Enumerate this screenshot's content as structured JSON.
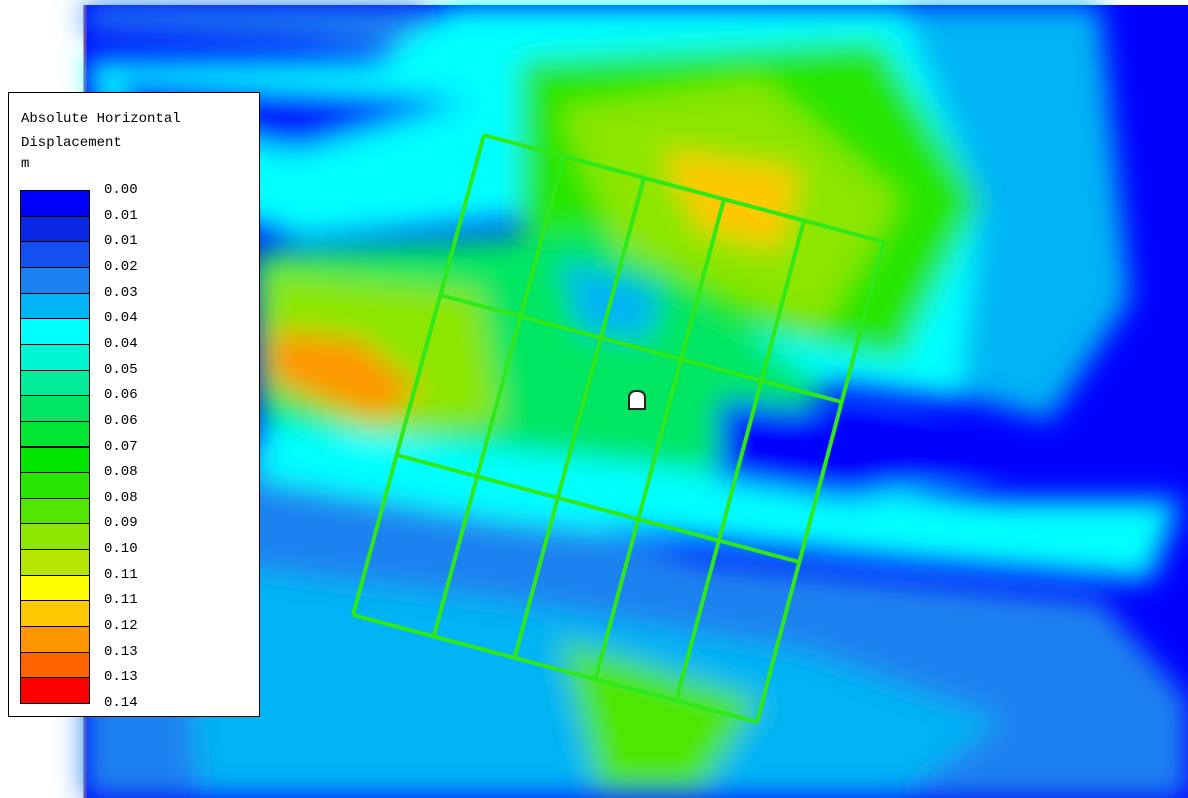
{
  "legend": {
    "title": "Absolute Horizontal Displacement",
    "unit": "m",
    "labels": [
      "0.00",
      "0.01",
      "0.01",
      "0.02",
      "0.03",
      "0.04",
      "0.04",
      "0.05",
      "0.06",
      "0.06",
      "0.07",
      "0.08",
      "0.08",
      "0.09",
      "0.10",
      "0.11",
      "0.11",
      "0.12",
      "0.13",
      "0.13",
      "0.14"
    ],
    "colors": [
      "#0000ff",
      "#0a28e6",
      "#1450f0",
      "#1a82f0",
      "#00b4f5",
      "#00ffff",
      "#00f5d2",
      "#00ec9a",
      "#00e664",
      "#00e632",
      "#00e600",
      "#28e600",
      "#50e600",
      "#8ce600",
      "#b4e600",
      "#ffff00",
      "#ffc800",
      "#ff9600",
      "#ff6400",
      "#ff0000"
    ]
  }
}
